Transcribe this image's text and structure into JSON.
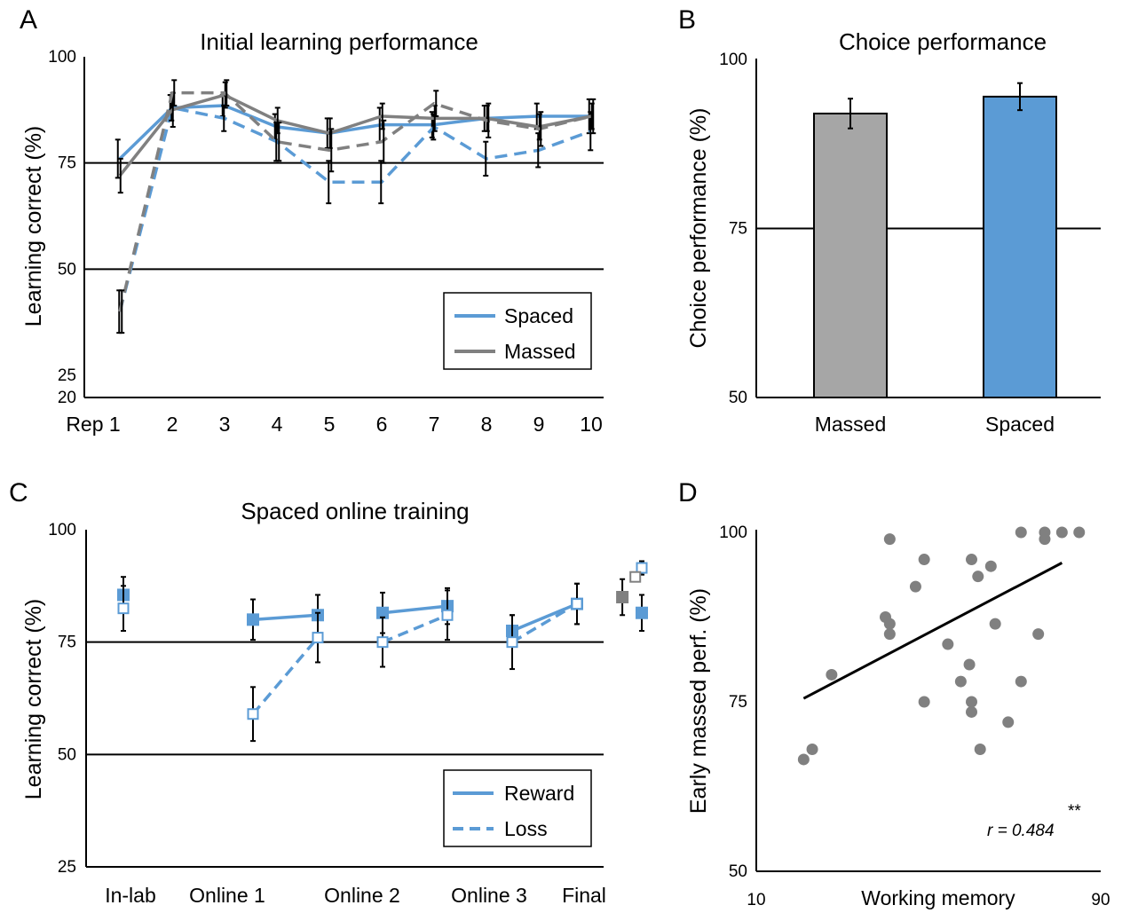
{
  "panels": {
    "A": {
      "letter": "A",
      "chart_data": {
        "type": "line",
        "title": "Initial learning performance",
        "ylabel": "Learning correct (%)",
        "xlabel": "",
        "x_ticks": [
          "Rep 1",
          "2",
          "3",
          "4",
          "5",
          "6",
          "7",
          "8",
          "9",
          "10"
        ],
        "y_ticks": [
          "100",
          "75",
          "50",
          "25",
          "20"
        ],
        "y_tick_values": [
          100,
          75,
          50,
          25,
          20
        ],
        "ylim": [
          20,
          100
        ],
        "reference_lines": [
          75,
          50
        ],
        "legend": [
          "Spaced",
          "Massed"
        ],
        "legend_position": "bottom-right",
        "series": [
          {
            "name": "Spaced",
            "condition": "reward",
            "color": "#5b9bd5",
            "dash": "solid",
            "values": [
              76,
              88,
              88.5,
              83.5,
              82,
              84,
              84,
              85.5,
              86,
              86
            ],
            "errors": [
              4.5,
              3,
              2.5,
              3,
              3.5,
              4,
              3,
              3,
              3,
              4
            ]
          },
          {
            "name": "Spaced",
            "condition": "loss",
            "color": "#5b9bd5",
            "dash": "dashed",
            "values": [
              40,
              88,
              85.5,
              80,
              70.5,
              70.5,
              83.5,
              76,
              78,
              82.5
            ],
            "errors": [
              5,
              3,
              3,
              4.5,
              5,
              5,
              3,
              4,
              4,
              4.5
            ]
          },
          {
            "name": "Massed",
            "condition": "reward",
            "color": "#808080",
            "dash": "solid",
            "values": [
              72,
              87.5,
              91,
              85,
              82,
              86,
              85.5,
              85.5,
              83.5,
              86
            ],
            "errors": [
              4,
              4,
              3,
              3,
              3.5,
              3,
              3,
              3,
              3,
              3
            ]
          },
          {
            "name": "Massed",
            "condition": "loss",
            "color": "#808080",
            "dash": "dashed",
            "values": [
              40,
              91.5,
              91.5,
              80,
              78,
              80,
              89,
              85,
              83,
              86
            ],
            "errors": [
              5,
              3,
              3,
              4.5,
              5,
              5,
              3,
              4,
              4,
              4
            ]
          }
        ]
      }
    },
    "B": {
      "letter": "B",
      "chart_data": {
        "type": "bar",
        "title": "Choice performance",
        "ylabel": "Choice performance (%)",
        "xlabel": "",
        "categories": [
          "Massed",
          "Spaced"
        ],
        "values": [
          92,
          94.5
        ],
        "errors": [
          2.2,
          2
        ],
        "colors": [
          "#a6a6a6",
          "#5b9bd5"
        ],
        "y_ticks": [
          "100",
          "75",
          "50"
        ],
        "y_tick_values": [
          100,
          75,
          50
        ],
        "ylim": [
          50,
          100
        ],
        "reference_lines": [
          75
        ]
      }
    },
    "C": {
      "letter": "C",
      "chart_data": {
        "type": "line",
        "title": "Spaced online training",
        "ylabel": "Learning correct (%)",
        "xlabel": "",
        "x_ticks": [
          "In-lab",
          "Online 1",
          "Online 2",
          "Online 3",
          "Final"
        ],
        "y_ticks": [
          "100",
          "75",
          "50",
          "25"
        ],
        "y_tick_values": [
          100,
          75,
          50,
          25
        ],
        "ylim": [
          25,
          100
        ],
        "reference_lines": [
          75,
          50
        ],
        "legend": [
          "Reward",
          "Loss"
        ],
        "legend_position": "bottom-right",
        "series": [
          {
            "name": "Reward",
            "color": "#5b9bd5",
            "dash": "solid",
            "marker": "filled-square",
            "points": [
              {
                "x": 1.0,
                "y": 85.5,
                "err": 4
              },
              {
                "x": 2.0,
                "y": 80,
                "err": 4.5
              },
              {
                "x": 2.5,
                "y": 81,
                "err": 4.5
              },
              {
                "x": 3.0,
                "y": 81.5,
                "err": 4.5
              },
              {
                "x": 3.5,
                "y": 83,
                "err": 4
              },
              {
                "x": 4.0,
                "y": 77.5,
                "err": 3.5
              },
              {
                "x": 4.5,
                "y": 83.5,
                "err": 4.5
              },
              {
                "x": 5.0,
                "y": 81.5,
                "err": 4
              }
            ],
            "groups": [
              [
                0
              ],
              [
                1,
                2
              ],
              [
                3,
                4
              ],
              [
                5,
                6
              ],
              [
                7
              ]
            ]
          },
          {
            "name": "Loss",
            "color": "#5b9bd5",
            "dash": "dashed",
            "marker": "open-square",
            "points": [
              {
                "x": 1.0,
                "y": 82.5,
                "err": 5
              },
              {
                "x": 2.0,
                "y": 59,
                "err": 6
              },
              {
                "x": 2.5,
                "y": 76,
                "err": 5.5
              },
              {
                "x": 3.0,
                "y": 75,
                "err": 5.5
              },
              {
                "x": 3.5,
                "y": 81,
                "err": 5.5
              },
              {
                "x": 4.0,
                "y": 75,
                "err": 6
              },
              {
                "x": 4.5,
                "y": 83.5,
                "err": 4.5
              },
              {
                "x": 5.0,
                "y": 91.5,
                "err": 1.5
              }
            ],
            "groups": [
              [
                0
              ],
              [
                1,
                2
              ],
              [
                3,
                4
              ],
              [
                5,
                6
              ],
              [
                7
              ]
            ]
          },
          {
            "name": "",
            "color": "#808080",
            "dash": "solid",
            "marker": "filled-square",
            "points": [
              {
                "x": 4.85,
                "y": 85,
                "err": 4
              }
            ],
            "groups": [
              [
                0
              ]
            ]
          },
          {
            "name": "",
            "color": "#808080",
            "dash": "dashed",
            "marker": "open-square",
            "points": [
              {
                "x": 4.95,
                "y": 89.5,
                "err": 0
              }
            ],
            "groups": [
              [
                0
              ]
            ]
          }
        ]
      }
    },
    "D": {
      "letter": "D",
      "chart_data": {
        "type": "scatter",
        "title": "",
        "ylabel": "Early massed perf. (%)",
        "xlabel": "Working memory",
        "x_tick_labels": [
          "10",
          "90"
        ],
        "x_tick_values": [
          10,
          90
        ],
        "y_ticks": [
          "100",
          "75",
          "50"
        ],
        "y_tick_values": [
          100,
          75,
          50
        ],
        "xlim": [
          10,
          90
        ],
        "ylim": [
          50,
          100
        ],
        "annotation": "r = 0.484",
        "significance": "**",
        "point_color": "#808080",
        "regression": {
          "x": [
            21,
            81
          ],
          "y": [
            75.5,
            95.5
          ]
        },
        "points": [
          {
            "x": 21,
            "y": 66.5
          },
          {
            "x": 23,
            "y": 68
          },
          {
            "x": 27.5,
            "y": 79
          },
          {
            "x": 40,
            "y": 87.5
          },
          {
            "x": 41,
            "y": 86.5
          },
          {
            "x": 41,
            "y": 85
          },
          {
            "x": 41,
            "y": 99
          },
          {
            "x": 47,
            "y": 92
          },
          {
            "x": 49,
            "y": 96
          },
          {
            "x": 49,
            "y": 75
          },
          {
            "x": 54.5,
            "y": 83.5
          },
          {
            "x": 57.5,
            "y": 78
          },
          {
            "x": 59.5,
            "y": 80.5
          },
          {
            "x": 60,
            "y": 75
          },
          {
            "x": 60,
            "y": 73.5
          },
          {
            "x": 60,
            "y": 96
          },
          {
            "x": 61.5,
            "y": 93.5
          },
          {
            "x": 62,
            "y": 68
          },
          {
            "x": 64.5,
            "y": 95
          },
          {
            "x": 65.5,
            "y": 86.5
          },
          {
            "x": 68.5,
            "y": 72
          },
          {
            "x": 71.5,
            "y": 78
          },
          {
            "x": 71.5,
            "y": 100
          },
          {
            "x": 75.5,
            "y": 85
          },
          {
            "x": 77,
            "y": 99
          },
          {
            "x": 77,
            "y": 100
          },
          {
            "x": 81,
            "y": 100
          },
          {
            "x": 85,
            "y": 100
          }
        ]
      }
    }
  }
}
